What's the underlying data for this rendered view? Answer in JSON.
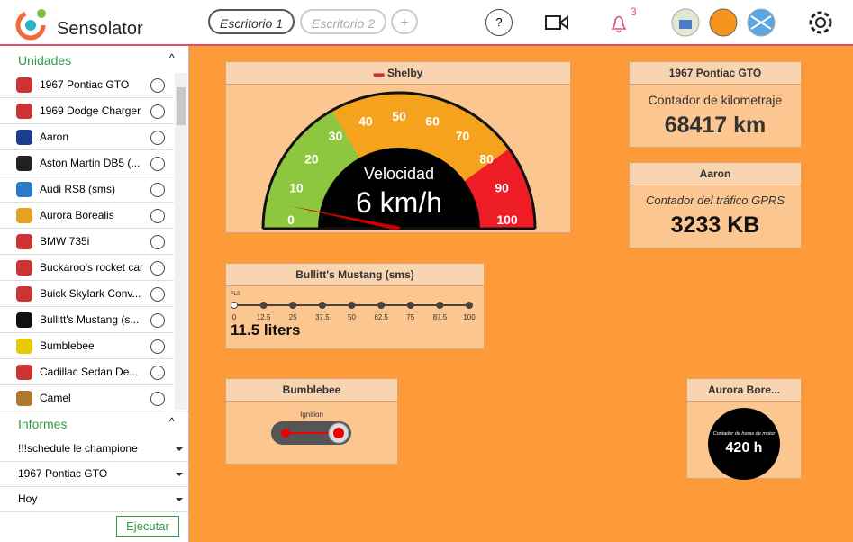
{
  "header": {
    "app_name": "Sensolator",
    "tabs": [
      "Escritorio 1",
      "Escritorio 2",
      "+"
    ],
    "help": "?",
    "notifications": "3"
  },
  "sidebar": {
    "units_title": "Unidades",
    "units": [
      "1967 Pontiac GTO",
      "1969 Dodge Charger",
      "Aaron",
      "Aston Martin DB5 (...",
      "Audi RS8 (sms)",
      "Aurora Borealis",
      "BMW 735i",
      "Buckaroo's rocket car",
      "Buick Skylark Conv...",
      "Bullitt's Mustang (s...",
      "Bumblebee",
      "Cadillac Sedan De...",
      "Camel"
    ],
    "reports_title": "Informes",
    "report_selects": [
      "!!!schedule le champione",
      "1967 Pontiac GTO",
      "Hoy"
    ],
    "run_button": "Ejecutar"
  },
  "widgets": {
    "shelby": {
      "title": "Shelby",
      "gauge_label": "Velocidad",
      "value_text": "6 km/h",
      "ticks": [
        "0",
        "10",
        "20",
        "30",
        "40",
        "50",
        "60",
        "70",
        "80",
        "90",
        "100"
      ]
    },
    "pontiac": {
      "title": "1967 Pontiac GTO",
      "label": "Contador de kilometraje",
      "value_text": "68417 km"
    },
    "aaron": {
      "title": "Aaron",
      "label": "Contador del tráfico GPRS",
      "value_text": "3233 KB"
    },
    "bullitt": {
      "title": "Bullitt's Mustang (sms)",
      "scale_label": "FLS",
      "ticks": [
        "0",
        "12.5",
        "25",
        "37.5",
        "50",
        "62.5",
        "75",
        "87.5",
        "100"
      ],
      "value_text": "11.5 liters"
    },
    "bumblebee": {
      "title": "Bumblebee",
      "switch_label": "Ignition"
    },
    "aurora": {
      "title": "Aurora Bore...",
      "label": "Contador de horas de motor",
      "value_text": "420 h"
    }
  }
}
